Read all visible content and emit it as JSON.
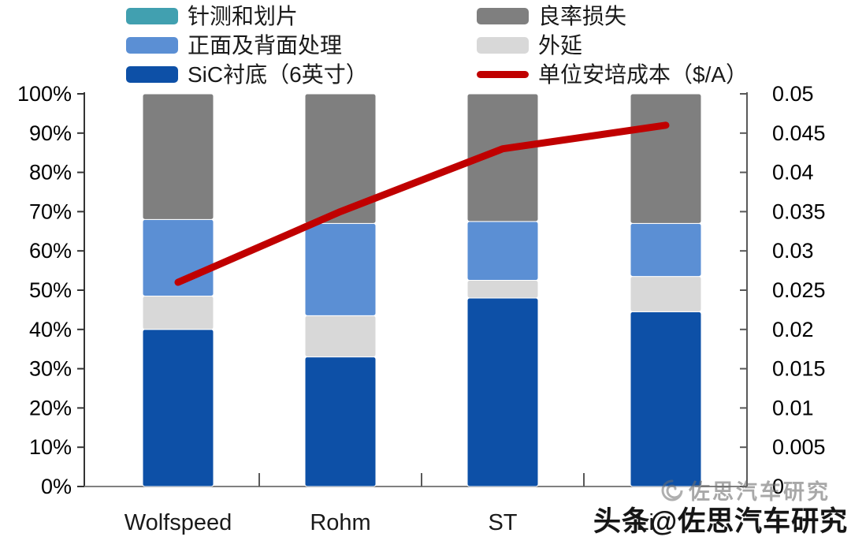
{
  "chart_data": {
    "type": "bar",
    "subtype": "stacked-percent-bars-with-line-overlay",
    "title": "",
    "categories": [
      "Wolfspeed",
      "Rohm",
      "ST",
      "Li"
    ],
    "series": [
      {
        "name": "SiC衬底（6英寸）",
        "color": "#0D50A7",
        "values": [
          40,
          33,
          48,
          44.5
        ]
      },
      {
        "name": "外延",
        "color": "#D8D8D8",
        "values": [
          8.5,
          10.5,
          4.5,
          9
        ]
      },
      {
        "name": "正面及背面处理",
        "color": "#5B8FD4",
        "values": [
          19.5,
          23.5,
          15,
          13.5
        ]
      },
      {
        "name": "针测和划片",
        "color": "#41A0B0",
        "values": [
          0,
          0,
          0,
          0
        ]
      },
      {
        "name": "良率损失",
        "color": "#7F7F7F",
        "values": [
          32,
          33,
          32.5,
          33
        ]
      }
    ],
    "line_series": {
      "name": "单位安培成本（$/A）",
      "color": "#C00000",
      "axis": "right",
      "values": [
        0.026,
        0.035,
        0.043,
        0.046
      ]
    },
    "left_axis": {
      "min": 0,
      "max": 100,
      "step": 10,
      "unit": "%",
      "tick_labels": [
        "0%",
        "10%",
        "20%",
        "30%",
        "40%",
        "50%",
        "60%",
        "70%",
        "80%",
        "90%",
        "100%"
      ]
    },
    "right_axis": {
      "min": 0,
      "max": 0.05,
      "step": 0.005,
      "unit": "$/A",
      "tick_labels": [
        "0",
        "0.005",
        "0.01",
        "0.015",
        "0.02",
        "0.025",
        "0.03",
        "0.035",
        "0.04",
        "0.045",
        "0.05"
      ]
    },
    "grid": false,
    "legend_position": "top"
  },
  "legend": {
    "items": [
      {
        "label": "针测和划片",
        "color": "#41A0B0",
        "shape": "rect"
      },
      {
        "label": "良率损失",
        "color": "#7F7F7F",
        "shape": "rect"
      },
      {
        "label": "正面及背面处理",
        "color": "#5B8FD4",
        "shape": "rect"
      },
      {
        "label": "外延",
        "color": "#D8D8D8",
        "shape": "rect"
      },
      {
        "label": "SiC衬底（6英寸）",
        "color": "#0D50A7",
        "shape": "rect"
      },
      {
        "label": "单位安培成本（$/A）",
        "color": "#C00000",
        "shape": "line"
      }
    ]
  },
  "watermark": {
    "light_text": "佐思汽车研究",
    "dark_text": "头条@佐思汽车研究"
  }
}
